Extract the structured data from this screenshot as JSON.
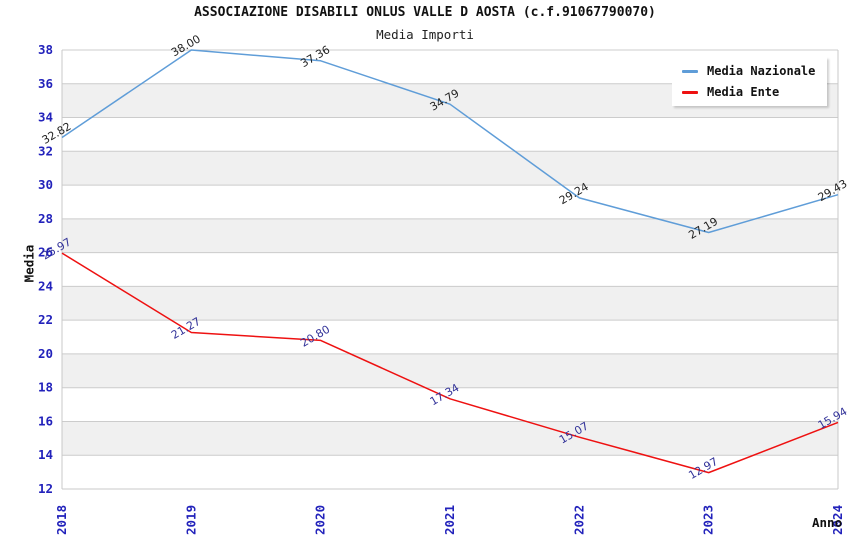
{
  "header": {
    "title": "ASSOCIAZIONE DISABILI ONLUS VALLE D AOSTA (c.f.91067790070)",
    "subtitle": "Media Importi"
  },
  "chart_data": {
    "type": "line",
    "x": [
      "2018",
      "2019",
      "2020",
      "2021",
      "2022",
      "2023",
      "2024"
    ],
    "series": [
      {
        "name": "Media Nazionale",
        "values": [
          32.82,
          38.0,
          37.36,
          34.79,
          29.24,
          27.19,
          29.43
        ],
        "color": "#5f9dd8",
        "label_color": "#222222"
      },
      {
        "name": "Media Ente",
        "values": [
          25.97,
          21.27,
          20.8,
          17.34,
          15.07,
          12.97,
          15.94
        ],
        "color": "#ee1111",
        "label_color": "#333399"
      }
    ],
    "xlabel": "Anno",
    "ylabel": "Media",
    "ylim": [
      12,
      38
    ],
    "ytick_step": 2,
    "grid": true,
    "legend_position": "top-right",
    "point_label_decimals": 2,
    "colors": {
      "tick_label": "#2222bb",
      "grid_line": "#cccccc",
      "plot_border": "#c8c8c8",
      "band_white": "#ffffff",
      "band_gray": "#f0f0f0"
    }
  }
}
